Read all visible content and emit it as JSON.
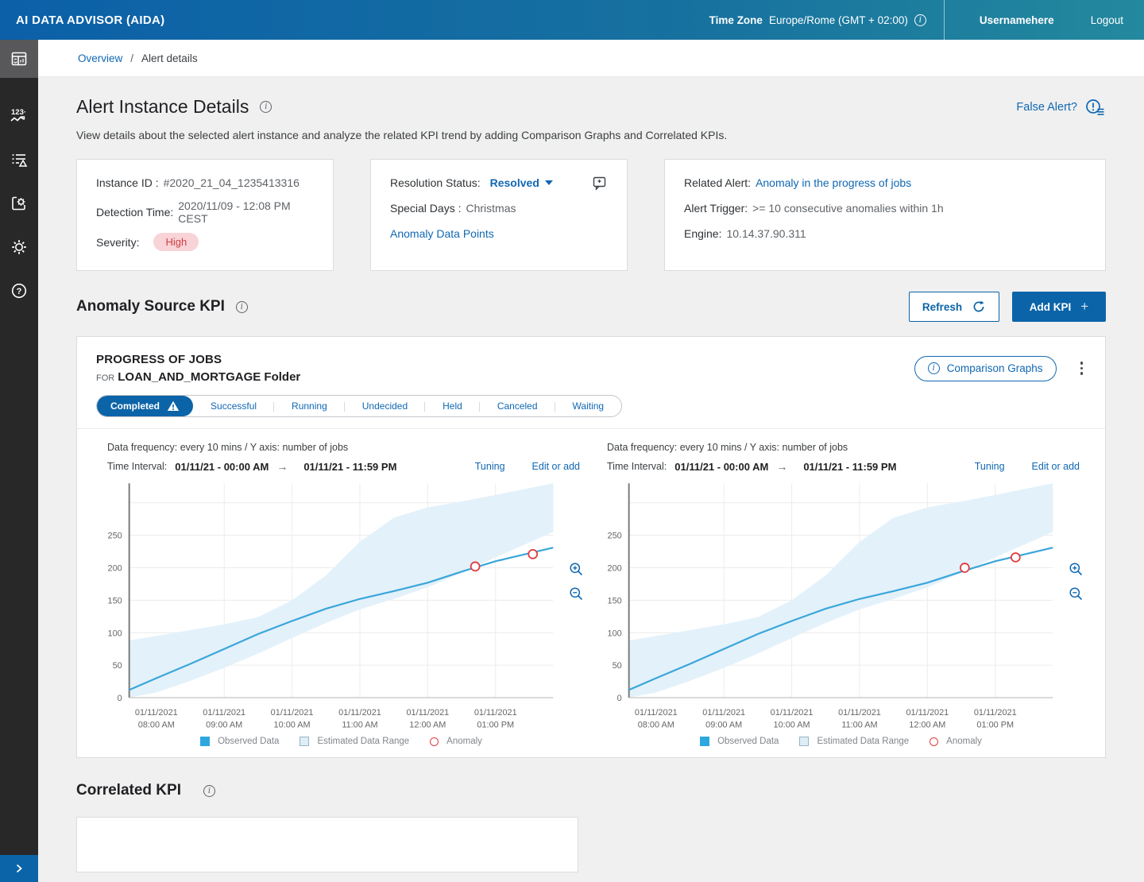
{
  "header": {
    "app_title": "AI DATA ADVISOR (AIDA)",
    "time_zone_label": "Time Zone",
    "time_zone_value": "Europe/Rome (GMT + 02:00)",
    "username": "Usernamehere",
    "logout_label": "Logout"
  },
  "sidebar": {
    "items": [
      "dashboard",
      "kpi-trends",
      "alert-list",
      "kpi-configuration",
      "settings",
      "help"
    ],
    "expand": "chevron-right"
  },
  "breadcrumb": {
    "overview": "Overview",
    "separator": "/",
    "current": "Alert details"
  },
  "page": {
    "title": "Alert Instance Details",
    "subtitle": "View details about the selected alert instance and analyze the related KPI trend by adding Comparison Graphs and Correlated KPIs.",
    "false_alert_label": "False Alert?"
  },
  "cards": {
    "instance": {
      "id_label": "Instance ID :",
      "id_value": "#2020_21_04_1235413316",
      "detection_label": "Detection Time:",
      "detection_value": "2020/11/09 - 12:08 PM CEST",
      "severity_label": "Severity:",
      "severity_value": "High"
    },
    "resolution": {
      "status_label": "Resolution Status:",
      "status_value": "Resolved",
      "special_days_label": "Special Days :",
      "special_days_value": "Christmas",
      "anomaly_link": "Anomaly Data Points"
    },
    "related": {
      "related_label": "Related Alert:",
      "related_value": "Anomaly in the progress of jobs",
      "trigger_label": "Alert Trigger:",
      "trigger_value": ">=  10 consecutive  anomalies within 1h",
      "engine_label": "Engine:",
      "engine_value": "10.14.37.90.311"
    }
  },
  "kpi_section": {
    "title": "Anomaly Source KPI",
    "refresh_label": "Refresh",
    "add_kpi_label": "Add KPI"
  },
  "kpi_card": {
    "title": "PROGRESS OF JOBS",
    "for_label": "FOR",
    "folder": "LOAN_AND_MORTGAGE Folder",
    "comparison_label": "Comparison Graphs",
    "tabs": [
      {
        "label": "Completed",
        "active": true,
        "warning": true
      },
      {
        "label": "Successful"
      },
      {
        "label": "Running"
      },
      {
        "label": "Undecided"
      },
      {
        "label": "Held"
      },
      {
        "label": "Canceled"
      },
      {
        "label": "Waiting"
      }
    ]
  },
  "panels": [
    {
      "frequency": "Data frequency: every 10 mins  /  Y axis: number of jobs",
      "interval_label": "Time Interval:",
      "interval_start": "01/11/21 - 00:00 AM",
      "interval_arrow": "→",
      "interval_end": "01/11/21 - 11:59 PM",
      "tuning_label": "Tuning",
      "edit_label": "Edit or add"
    },
    {
      "frequency": "Data frequency: every 10 mins  /  Y axis: number of jobs",
      "interval_label": "Time Interval:",
      "interval_start": "01/11/21 - 00:00 AM",
      "interval_arrow": "→",
      "interval_end": "01/11/21 - 11:59 PM",
      "tuning_label": "Tuning",
      "edit_label": "Edit or add"
    }
  ],
  "legend": {
    "observed": "Observed Data",
    "range": "Estimated Data Range",
    "anomaly": "Anomaly"
  },
  "correlated": {
    "title": "Correlated KPI"
  },
  "colors": {
    "accent_blue": "#0b64a8",
    "link_blue": "#1068b3",
    "line": "#39a6da",
    "band": "#e3f1fa",
    "anomaly": "#e03c40",
    "grid": "#ececec",
    "axis_y": "#7a7a7a",
    "axis_x": "#b5b5b5",
    "tick_text": "#666666",
    "severity_bg": "#f8d3d7",
    "severity_text": "#cf3d44"
  },
  "chart_data": [
    {
      "type": "line",
      "title": "PROGRESS OF JOBS — Completed",
      "ylabel": "number of jobs",
      "frequency": "every 10 mins",
      "xlim": [
        7.6,
        13.85
      ],
      "ylim": [
        0,
        330
      ],
      "yticks": [
        0,
        50,
        100,
        150,
        200,
        250
      ],
      "ygrid": [
        50,
        100,
        150,
        200,
        250,
        300
      ],
      "xgrid_hours": [
        9,
        10,
        11,
        12,
        13
      ],
      "xticks": [
        {
          "h": 8,
          "date": "01/11/2021",
          "time": "08:00 AM"
        },
        {
          "h": 9,
          "date": "01/11/2021",
          "time": "09:00 AM"
        },
        {
          "h": 10,
          "date": "01/11/2021",
          "time": "10:00 AM"
        },
        {
          "h": 11,
          "date": "01/11/2021",
          "time": "11:00 AM"
        },
        {
          "h": 12,
          "date": "01/11/2021",
          "time": "12:00 AM"
        },
        {
          "h": 13,
          "date": "01/11/2021",
          "time": "01:00 PM"
        }
      ],
      "x": [
        7.6,
        8,
        8.5,
        9,
        9.5,
        10,
        10.5,
        11,
        11.5,
        12,
        12.5,
        13,
        13.85
      ],
      "series": [
        {
          "name": "Observed Data",
          "values": [
            12,
            30,
            52,
            75,
            98,
            118,
            137,
            152,
            164,
            177,
            194,
            210,
            231
          ]
        },
        {
          "name": "Estimated Data Range (lower)",
          "values": [
            0,
            8,
            26,
            46,
            68,
            92,
            115,
            136,
            152,
            170,
            192,
            216,
            255
          ]
        },
        {
          "name": "Estimated Data Range (upper)",
          "values": [
            88,
            95,
            104,
            113,
            124,
            150,
            188,
            240,
            277,
            293,
            302,
            312,
            330
          ]
        }
      ],
      "anomalies": [
        {
          "x": 12.7,
          "y": 202
        },
        {
          "x": 13.55,
          "y": 221
        }
      ],
      "legend_position": "bottom",
      "grid": true
    },
    {
      "type": "line",
      "title": "PROGRESS OF JOBS — Completed (comparison)",
      "ylabel": "number of jobs",
      "frequency": "every 10 mins",
      "xlim": [
        7.6,
        13.85
      ],
      "ylim": [
        0,
        330
      ],
      "yticks": [
        0,
        50,
        100,
        150,
        200,
        250
      ],
      "ygrid": [
        50,
        100,
        150,
        200,
        250,
        300
      ],
      "xgrid_hours": [
        9,
        10,
        11,
        12,
        13
      ],
      "xticks": [
        {
          "h": 8,
          "date": "01/11/2021",
          "time": "08:00 AM"
        },
        {
          "h": 9,
          "date": "01/11/2021",
          "time": "09:00 AM"
        },
        {
          "h": 10,
          "date": "01/11/2021",
          "time": "10:00 AM"
        },
        {
          "h": 11,
          "date": "01/11/2021",
          "time": "11:00 AM"
        },
        {
          "h": 12,
          "date": "01/11/2021",
          "time": "12:00 AM"
        },
        {
          "h": 13,
          "date": "01/11/2021",
          "time": "01:00 PM"
        }
      ],
      "x": [
        7.6,
        8,
        8.5,
        9,
        9.5,
        10,
        10.5,
        11,
        11.5,
        12,
        12.5,
        13,
        13.85
      ],
      "series": [
        {
          "name": "Observed Data",
          "values": [
            12,
            30,
            52,
            75,
            98,
            118,
            137,
            152,
            164,
            177,
            194,
            210,
            231
          ]
        },
        {
          "name": "Estimated Data Range (lower)",
          "values": [
            0,
            8,
            26,
            46,
            68,
            92,
            115,
            136,
            152,
            170,
            192,
            216,
            255
          ]
        },
        {
          "name": "Estimated Data Range (upper)",
          "values": [
            88,
            95,
            104,
            113,
            124,
            150,
            188,
            240,
            277,
            293,
            302,
            312,
            330
          ]
        }
      ],
      "anomalies": [
        {
          "x": 12.55,
          "y": 200
        },
        {
          "x": 13.3,
          "y": 216
        }
      ],
      "legend_position": "bottom",
      "grid": true
    }
  ]
}
